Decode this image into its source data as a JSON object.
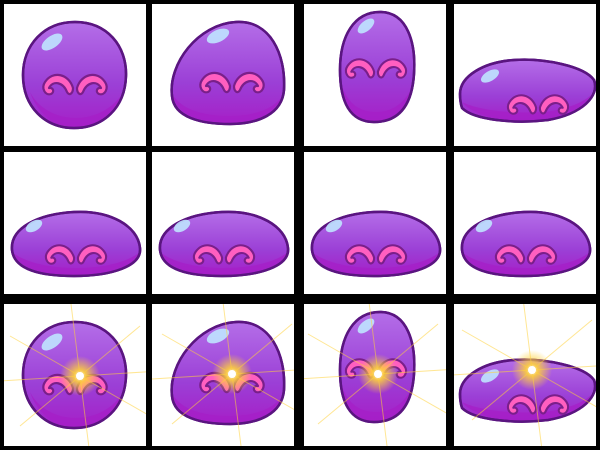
{
  "sheet": {
    "columns": 4,
    "rows": 3,
    "colors": {
      "grid_line": "#000000",
      "cell_background": "#ffffff",
      "body_top": "#b46ee8",
      "body_mid": "#9b3fd6",
      "body_bottom": "#a61fc7",
      "outline": "#5a1580",
      "highlight": "#bfe4ff",
      "mustache": "#ff5fc0",
      "mustache_outline": "#7a1f8a",
      "sparkle": "#ffd23a"
    },
    "frames": [
      {
        "shape": "round",
        "sparkle": false
      },
      {
        "shape": "mound",
        "sparkle": false
      },
      {
        "shape": "tall",
        "sparkle": false
      },
      {
        "shape": "flat-tilt",
        "sparkle": false
      },
      {
        "shape": "flat",
        "sparkle": false
      },
      {
        "shape": "flat",
        "sparkle": false
      },
      {
        "shape": "flat",
        "sparkle": false
      },
      {
        "shape": "flat",
        "sparkle": false
      },
      {
        "shape": "round",
        "sparkle": true
      },
      {
        "shape": "mound",
        "sparkle": true
      },
      {
        "shape": "tall",
        "sparkle": true
      },
      {
        "shape": "flat-tilt",
        "sparkle": true
      }
    ]
  }
}
